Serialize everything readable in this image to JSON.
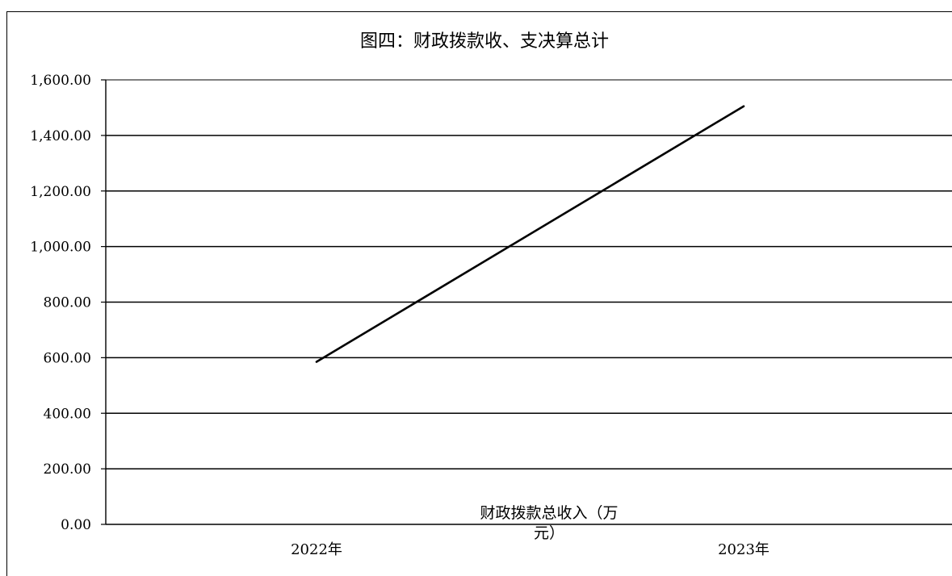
{
  "chart_data": {
    "type": "line",
    "title": "图四：财政拨款收、支决算总计",
    "categories": [
      "2022年",
      "2023年"
    ],
    "series": [
      {
        "name": "财政拨款总收入（万元）",
        "values": [
          585,
          1505
        ],
        "color": "#000000"
      }
    ],
    "ylim": [
      0,
      1600
    ],
    "yticks": [
      "0.00",
      "200.00",
      "400.00",
      "600.00",
      "800.00",
      "1,000.00",
      "1,200.00",
      "1,400.00",
      "1,600.00"
    ],
    "grid": true,
    "legend": "bottom"
  }
}
